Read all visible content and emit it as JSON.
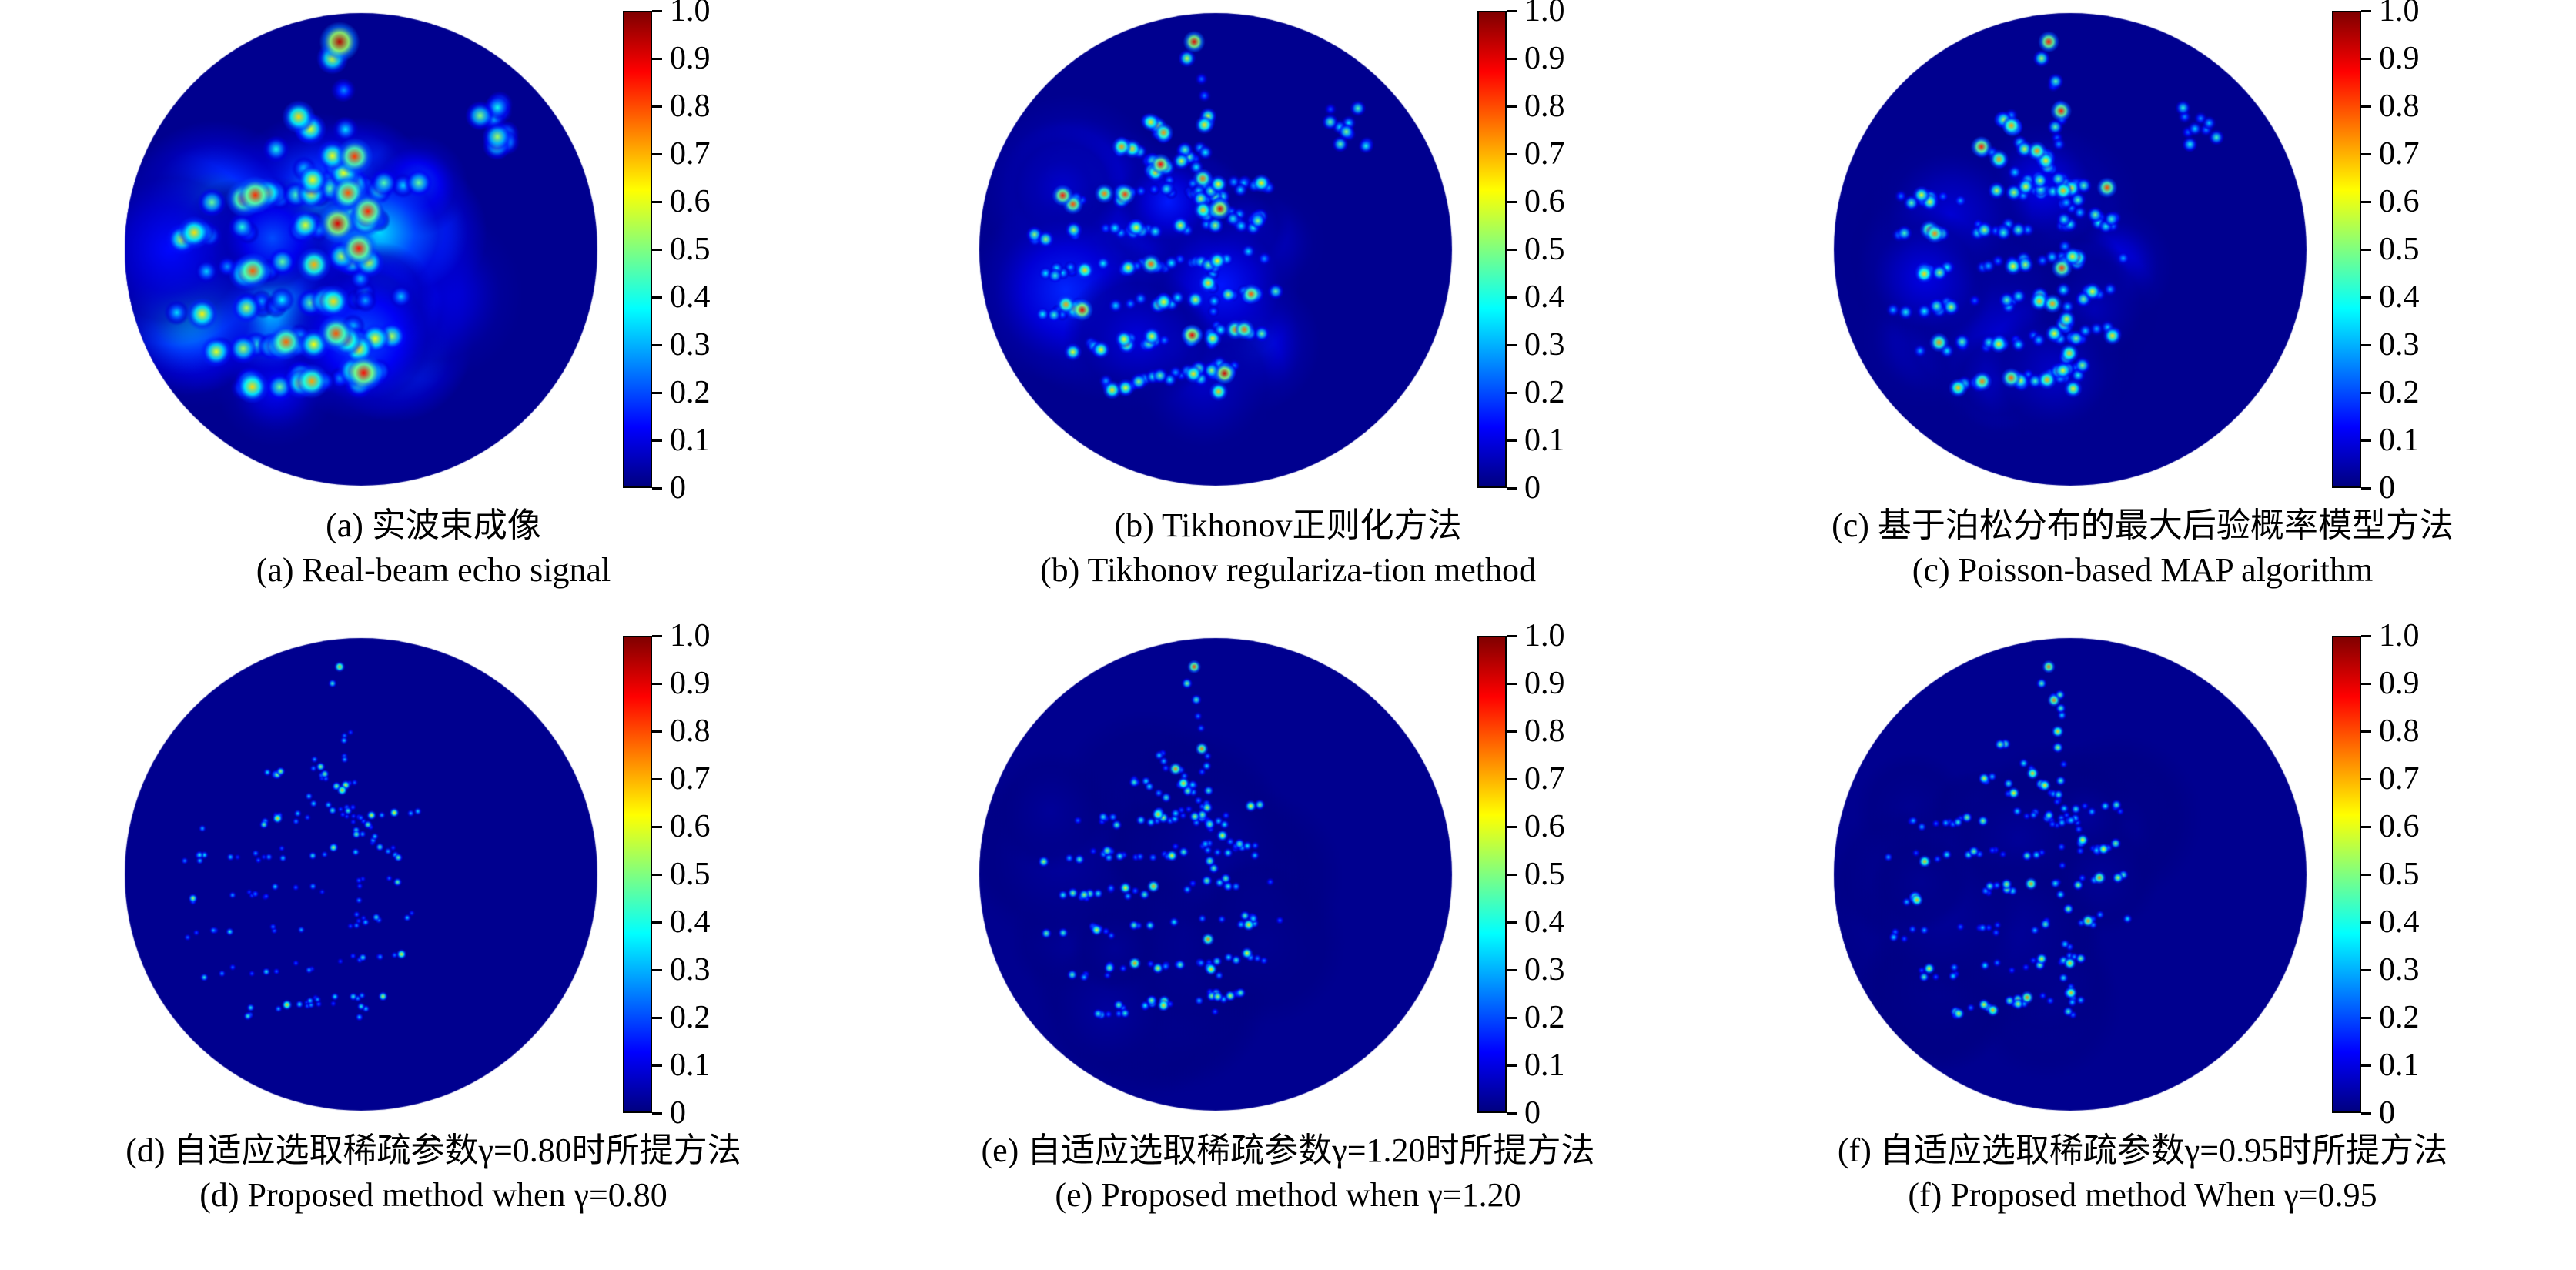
{
  "figure": {
    "colorbar": {
      "ticks": [
        "1.0",
        "0.9",
        "0.8",
        "0.7",
        "0.6",
        "0.5",
        "0.4",
        "0.3",
        "0.2",
        "0.1",
        "0"
      ]
    },
    "panels": [
      {
        "id": "a",
        "caption_zh": "(a) 实波束成像",
        "caption_en": "(a) Real-beam echo signal",
        "render": {
          "seed": 7,
          "radius": 16,
          "count": 150,
          "haze": 0.6,
          "gain": 1.0
        }
      },
      {
        "id": "b",
        "caption_zh": "(b) Tikhonov正则化方法",
        "caption_en": "(b) Tikhonov regulariza-tion method",
        "render": {
          "seed": 13,
          "radius": 9,
          "count": 260,
          "haze": 0.25,
          "gain": 0.95
        }
      },
      {
        "id": "c",
        "caption_zh": "(c) 基于泊松分布的最大后验概率模型方法",
        "caption_en": "(c) Poisson-based MAP algorithm",
        "render": {
          "seed": 21,
          "radius": 9,
          "count": 240,
          "haze": 0.2,
          "gain": 0.9
        }
      },
      {
        "id": "d",
        "caption_zh": "(d) 自适应选取稀疏参数γ=0.80时所提方法",
        "caption_en": "(d) Proposed method when γ=0.80",
        "render": {
          "seed": 31,
          "radius": 5,
          "count": 170,
          "haze": 0,
          "gain": 0.75
        }
      },
      {
        "id": "e",
        "caption_zh": "(e) 自适应选取稀疏参数γ=1.20时所提方法",
        "caption_en": "(e) Proposed method when γ=1.20",
        "render": {
          "seed": 41,
          "radius": 6,
          "count": 210,
          "haze": 0.05,
          "gain": 0.85
        }
      },
      {
        "id": "f",
        "caption_zh": "(f) 自适应选取稀疏参数γ=0.95时所提方法",
        "caption_en": "(f) Proposed method When γ=0.95",
        "render": {
          "seed": 51,
          "radius": 6,
          "count": 190,
          "haze": 0.05,
          "gain": 0.8
        }
      }
    ]
  }
}
